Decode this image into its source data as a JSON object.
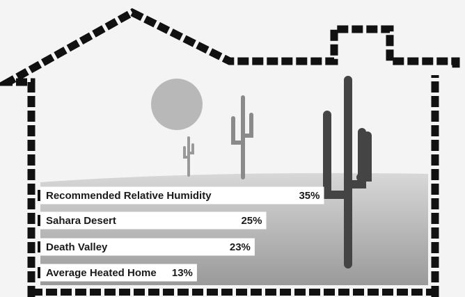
{
  "chart_data": {
    "type": "bar",
    "orientation": "horizontal",
    "categories": [
      "Recommended Relative Humidity",
      "Sahara Desert",
      "Death Valley",
      "Average Heated Home"
    ],
    "values": [
      35,
      25,
      23,
      13
    ],
    "value_labels": [
      "35%",
      "25%",
      "23%",
      "13%"
    ],
    "color": "#ffffff"
  }
}
